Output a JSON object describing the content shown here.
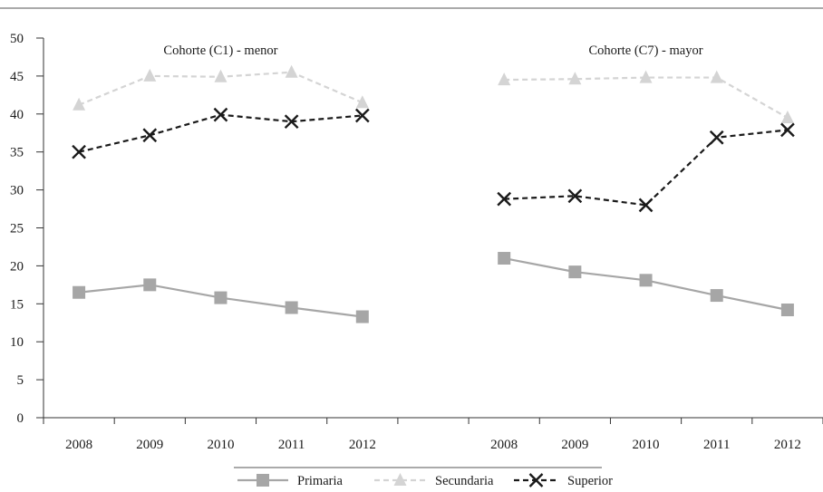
{
  "chart_data": {
    "type": "line",
    "ylim": [
      0,
      50
    ],
    "yticks": [
      0,
      5,
      10,
      15,
      20,
      25,
      30,
      35,
      40,
      45,
      50
    ],
    "grid": false,
    "legend_position": "bottom",
    "x": [
      "2008",
      "2009",
      "2010",
      "2011",
      "2012",
      "",
      "2008",
      "2009",
      "2010",
      "2011",
      "2012"
    ],
    "panels": [
      {
        "title": "Cohorte (C1) - menor",
        "slots": [
          0,
          1,
          2,
          3,
          4
        ],
        "series": [
          {
            "name": "Primaria",
            "values": [
              16.5,
              17.5,
              15.8,
              14.5,
              13.3
            ]
          },
          {
            "name": "Secundaria",
            "values": [
              41.2,
              45.0,
              44.9,
              45.5,
              41.5
            ]
          },
          {
            "name": "Superior",
            "values": [
              35.0,
              37.2,
              39.9,
              39.0,
              39.8
            ]
          }
        ]
      },
      {
        "title": "Cohorte (C7) - mayor",
        "slots": [
          6,
          7,
          8,
          9,
          10
        ],
        "series": [
          {
            "name": "Primaria",
            "values": [
              21.0,
              19.2,
              18.1,
              16.1,
              14.2
            ]
          },
          {
            "name": "Secundaria",
            "values": [
              44.5,
              44.6,
              44.8,
              44.8,
              39.5
            ]
          },
          {
            "name": "Superior",
            "values": [
              28.8,
              29.2,
              28.0,
              36.9,
              37.9
            ]
          }
        ]
      }
    ],
    "legend": [
      {
        "name": "Primaria",
        "color": "#a6a6a6",
        "dash": "solid",
        "marker": "square"
      },
      {
        "name": "Secundaria",
        "color": "#d4d4d4",
        "dash": "dashed",
        "marker": "triangle"
      },
      {
        "name": "Superior",
        "color": "#1a1a1a",
        "dash": "dashed",
        "marker": "x"
      }
    ]
  }
}
